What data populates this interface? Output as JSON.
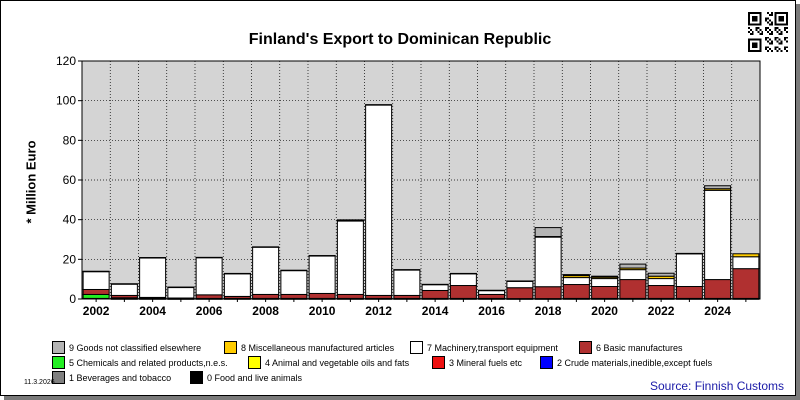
{
  "chart_data": {
    "type": "bar",
    "stacked": true,
    "title": "Finland's Export to Dominican Republic",
    "ylabel": "* Million Euro",
    "xlabel": "",
    "ylim": [
      0,
      120
    ],
    "yticks": [
      0,
      20,
      40,
      60,
      80,
      100,
      120
    ],
    "x_tick_labels": [
      "2002",
      "2004",
      "2006",
      "2008",
      "2010",
      "2012",
      "2014",
      "2016",
      "2018",
      "2020",
      "2022",
      "2024"
    ],
    "grid": true,
    "categories": [
      "2002",
      "2003",
      "2004",
      "2005",
      "2006",
      "2007",
      "2008",
      "2009",
      "2010",
      "2011",
      "2012",
      "2013",
      "2014",
      "2015",
      "2016",
      "2017",
      "2018",
      "2019",
      "2020",
      "2021",
      "2022",
      "2023",
      "2024",
      "2025"
    ],
    "series": [
      {
        "name": "0 Food and live animals",
        "color": "#000000",
        "values": [
          0.3,
          0.1,
          0.1,
          0.1,
          0.1,
          0.1,
          0.1,
          0.1,
          0.1,
          0.1,
          0.1,
          0.1,
          0.1,
          0.1,
          0.1,
          0.1,
          0.1,
          0.1,
          0.1,
          0.1,
          0.1,
          0.1,
          0.1,
          0.1
        ]
      },
      {
        "name": "1 Beverages and tobacco",
        "color": "#808080",
        "values": [
          0,
          0,
          0,
          0,
          0,
          0,
          0,
          0,
          0,
          0,
          0,
          0,
          0,
          0,
          0,
          0,
          0,
          0,
          0,
          0,
          0,
          0,
          0,
          0
        ]
      },
      {
        "name": "2 Crude materials,inedible,except fuels",
        "color": "#0000ff",
        "values": [
          0,
          0,
          0,
          0,
          0,
          0,
          0,
          0,
          0,
          0,
          0,
          0,
          0,
          0,
          0,
          0,
          0,
          0,
          0,
          0,
          0,
          0,
          0,
          0
        ]
      },
      {
        "name": "3 Mineral fuels etc",
        "color": "#ee1111",
        "values": [
          0,
          0,
          0,
          0,
          0,
          0,
          0,
          0,
          0,
          0,
          0,
          0,
          0,
          0,
          0,
          0,
          0,
          0,
          0,
          0,
          0,
          0,
          0,
          0
        ]
      },
      {
        "name": "4 Animal and vegetable oils and fats",
        "color": "#ffff00",
        "values": [
          0,
          0,
          0,
          0,
          0,
          0,
          0,
          0,
          0,
          0,
          0,
          0,
          0,
          0,
          0,
          0,
          0,
          0,
          0,
          0,
          0,
          0,
          0,
          0
        ]
      },
      {
        "name": "5 Chemicals and related products,n.e.s.",
        "color": "#22ee22",
        "values": [
          2.0,
          0.5,
          0.2,
          0.1,
          0.2,
          0.2,
          0.2,
          0.2,
          0.2,
          0.2,
          0.2,
          0.2,
          0.2,
          0.2,
          0.2,
          0.1,
          0.1,
          0.2,
          0.2,
          0.2,
          0.2,
          0.2,
          0.2,
          0.2
        ]
      },
      {
        "name": "6 Basic manufactures",
        "color": "#b03030",
        "values": [
          2.5,
          1.2,
          0.5,
          0.3,
          1.8,
          1.0,
          2.0,
          2.0,
          2.5,
          2.0,
          1.5,
          1.5,
          4.0,
          6.5,
          2.0,
          5.5,
          6.0,
          7.0,
          6.0,
          9.5,
          6.5,
          6.0,
          9.5,
          15.0
        ]
      },
      {
        "name": "7 Machinery,transport equipment",
        "color": "#ffffff",
        "values": [
          9.0,
          5.7,
          20.0,
          5.4,
          18.8,
          11.5,
          23.9,
          12.1,
          19.0,
          37.0,
          96.0,
          12.9,
          3.0,
          6.0,
          2.0,
          3.3,
          25.0,
          3.5,
          4.0,
          5.0,
          3.5,
          16.5,
          45.0,
          6.0
        ]
      },
      {
        "name": "8 Miscellaneous manufactured articles",
        "color": "#ffcc00",
        "values": [
          0.2,
          0.2,
          0.1,
          0.1,
          0.1,
          0.1,
          0.1,
          0.1,
          0.1,
          0.3,
          0.2,
          0.1,
          0.1,
          0.1,
          0.1,
          0.1,
          0.3,
          1.0,
          0.7,
          0.8,
          1.2,
          0.2,
          0.8,
          1.5
        ]
      },
      {
        "name": "9 Goods not classified elsewhere",
        "color": "#b4b4b4",
        "values": [
          0,
          0,
          0,
          0,
          0,
          0,
          0,
          0,
          0,
          0.3,
          0,
          0,
          0,
          0,
          0,
          0,
          4.5,
          0.5,
          0.5,
          2.0,
          1.5,
          0,
          1.5,
          0
        ]
      }
    ],
    "legend_placement": "bottom"
  },
  "legend": [
    {
      "label": "9 Goods not classified elsewhere",
      "color": "#b4b4b4"
    },
    {
      "label": "8 Miscellaneous manufactured articles",
      "color": "#ffcc00"
    },
    {
      "label": "7 Machinery,transport equipment",
      "color": "#ffffff"
    },
    {
      "label": "6 Basic manufactures",
      "color": "#b03030"
    },
    {
      "label": "5 Chemicals and related products,n.e.s.",
      "color": "#22ee22"
    },
    {
      "label": "4 Animal and vegetable oils and fats",
      "color": "#ffff00"
    },
    {
      "label": "3 Mineral fuels etc",
      "color": "#ee1111"
    },
    {
      "label": "2 Crude materials,inedible,except fuels",
      "color": "#0000ff"
    },
    {
      "label": "1 Beverages and tobacco",
      "color": "#808080"
    },
    {
      "label": "0 Food and live animals",
      "color": "#000000"
    }
  ],
  "footer": {
    "date": "11.3.2026",
    "source": "Source: Finnish Customs"
  },
  "colors": {
    "plot_background": "#d4d4d4",
    "source_text": "#1a1aa8"
  },
  "icons": {
    "qr": "qr-code-icon"
  }
}
